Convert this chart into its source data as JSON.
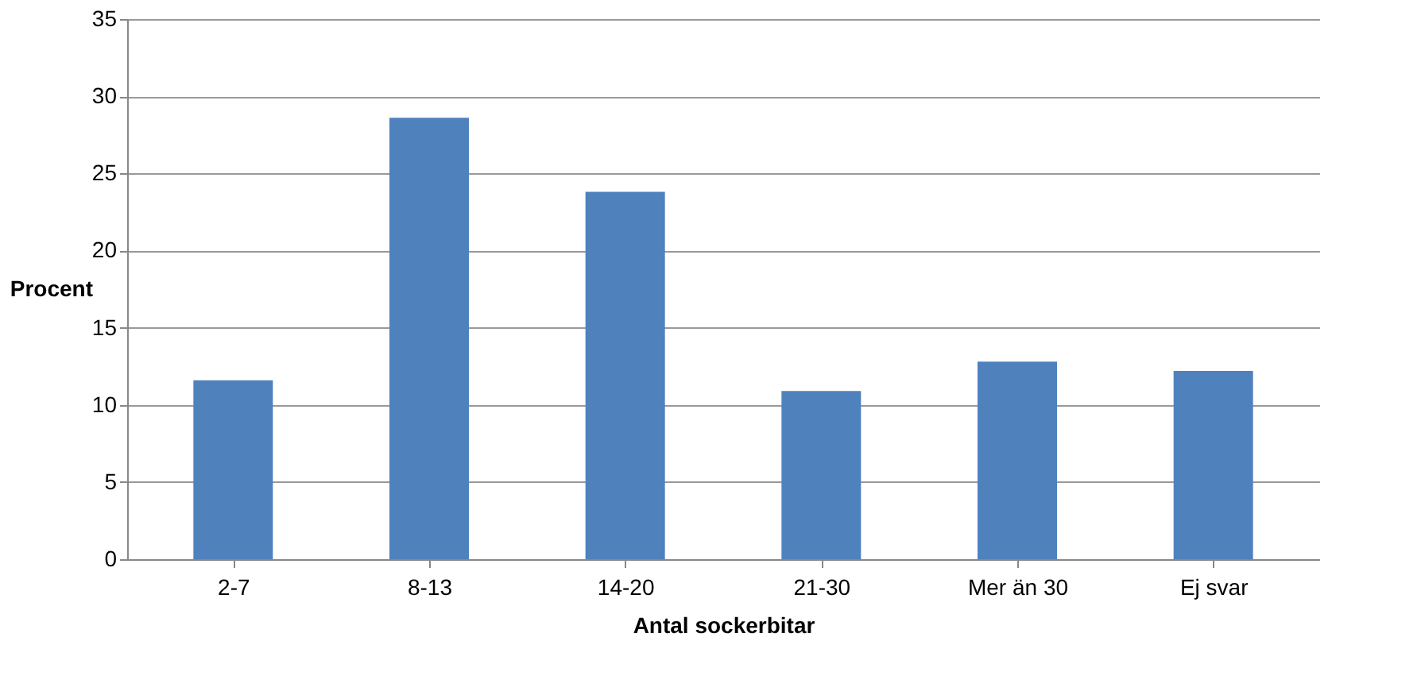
{
  "chart_data": {
    "type": "bar",
    "xlabel": "Antal sockerbitar",
    "ylabel": "Procent",
    "categories": [
      "2-7",
      "8-13",
      "14-20",
      "21-30",
      "Mer än 30",
      "Ej svar"
    ],
    "values": [
      11.6,
      28.6,
      23.8,
      10.9,
      12.8,
      12.2
    ],
    "color": "#4f81bd",
    "ylim": [
      0,
      35
    ],
    "yticks": [
      0,
      5,
      10,
      15,
      20,
      25,
      30,
      35
    ],
    "grid": "y"
  }
}
